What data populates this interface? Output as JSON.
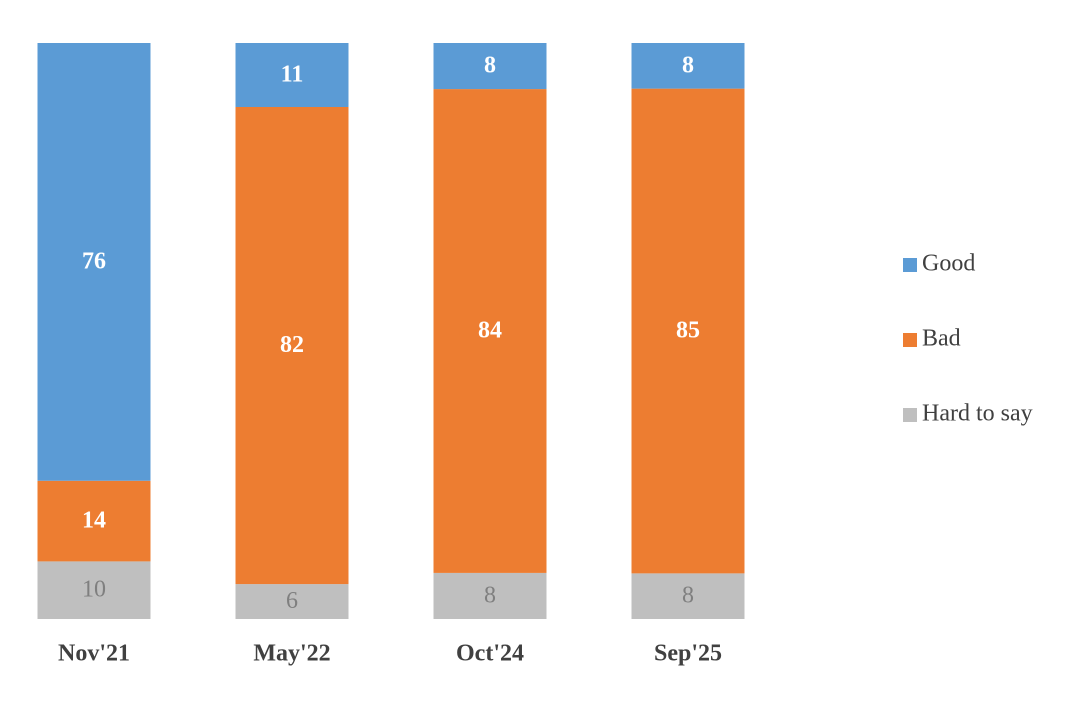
{
  "chart_data": {
    "type": "bar",
    "stacked": "percent",
    "categories": [
      "Nov'21",
      "May'22",
      "Oct'24",
      "Sep'25"
    ],
    "series": [
      {
        "name": "Good",
        "color": "#5b9bd5",
        "label_color": "#ffffff",
        "label_bold": true,
        "values": [
          76,
          11,
          8,
          8
        ]
      },
      {
        "name": "Bad",
        "color": "#ed7d31",
        "label_color": "#ffffff",
        "label_bold": true,
        "values": [
          14,
          82,
          84,
          85
        ]
      },
      {
        "name": "Hard to say",
        "color": "#bfbfbf",
        "label_color": "#7f7f7f",
        "label_bold": false,
        "values": [
          10,
          6,
          8,
          8
        ]
      }
    ],
    "legend": "right"
  }
}
